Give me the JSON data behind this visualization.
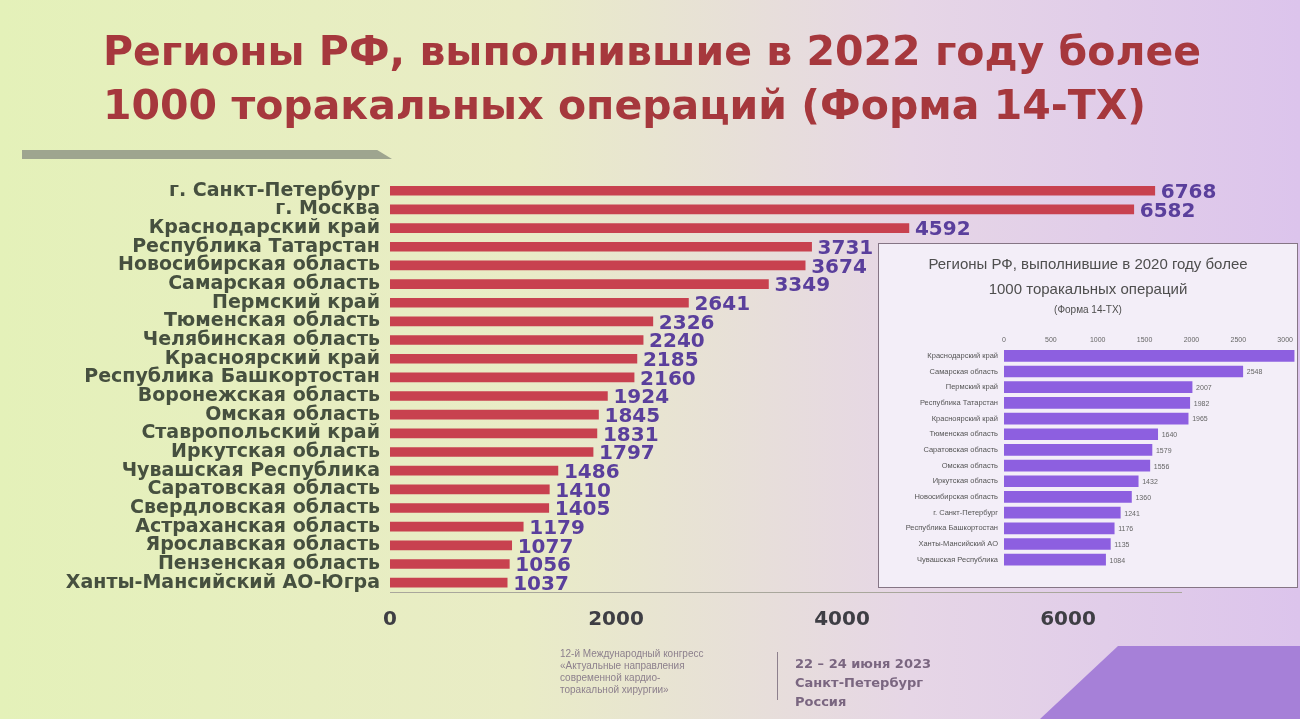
{
  "chart_data": [
    {
      "type": "bar",
      "orientation": "horizontal",
      "title": "Регионы РФ, выполнившие в 2022 году более\n1000 торакальных операций (Форма 14-ТХ)",
      "categories": [
        "г. Санкт-Петербург",
        "г. Москва",
        "Краснодарский край",
        "Республика Татарстан",
        "Новосибирская область",
        "Самарская область",
        "Пермский край",
        "Тюменская область",
        "Челябинская область",
        "Красноярский край",
        "Республика Башкортостан",
        "Воронежская область",
        "Омская область",
        "Ставропольский край",
        "Иркутская область",
        "Чувашская Республика",
        "Саратовская область",
        "Свердловская область",
        "Астраханская область",
        "Ярославская область",
        "Пензенская область",
        "Ханты-Мансийский АО-Югра"
      ],
      "values": [
        6768,
        6582,
        4592,
        3731,
        3674,
        3349,
        2641,
        2326,
        2240,
        2185,
        2160,
        1924,
        1845,
        1831,
        1797,
        1486,
        1410,
        1405,
        1179,
        1077,
        1056,
        1037
      ],
      "color": "#c8414f",
      "data_labels": true,
      "xlim": [
        0,
        7000
      ],
      "xticks": [
        0,
        2000,
        4000,
        6000
      ],
      "annotations": [
        "12-й Международный конгресс\n«Актуальные направления\nсовременной кардио-\nторакальной хирургии»",
        "22 – 24 июня 2023\nСанкт-Петербург\nРоссия"
      ]
    },
    {
      "type": "bar",
      "orientation": "horizontal",
      "title": "Регионы РФ, выполнившие в 2020 году более\n1000 торакальных операций",
      "subtitle": "(Форма 14-ТХ)",
      "categories": [
        "Краснодарский край",
        "Самарская область",
        "Пермский край",
        "Республика Татарстан",
        "Красноярский край",
        "Тюменская область",
        "Саратовская область",
        "Омская область",
        "Иркутская область",
        "Новосибирская область",
        "г. Санкт-Петербург",
        "Республика Башкортостан",
        "Ханты-Мансийский АО",
        "Чувашская Республика"
      ],
      "values": [
        3100,
        2548,
        2007,
        1982,
        1965,
        1640,
        1579,
        1556,
        1432,
        1360,
        1241,
        1176,
        1135,
        1084
      ],
      "value_labels": [
        null,
        "2548",
        "2007",
        "1982",
        "1965",
        "1640",
        "1579",
        "1556",
        "1432",
        "1360",
        "1241",
        "1176",
        "1135",
        "1084"
      ],
      "color": "#8d5fe0",
      "xlim": [
        0,
        3100
      ],
      "xticks": [
        0,
        500,
        1000,
        1500,
        2000,
        2500,
        3000
      ]
    }
  ]
}
